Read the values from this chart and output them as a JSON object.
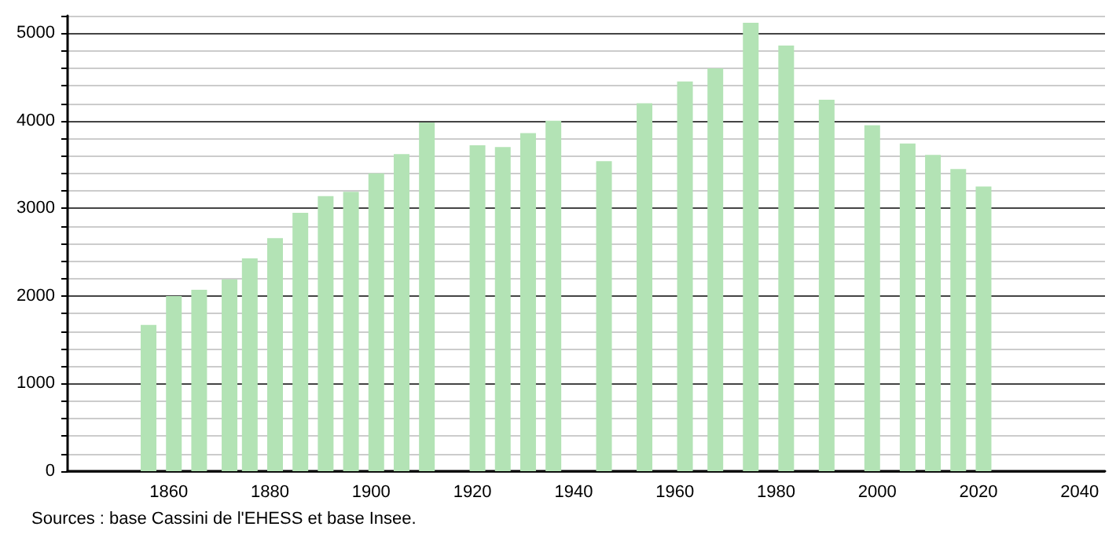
{
  "chart_data": {
    "type": "bar",
    "x": [
      1856,
      1861,
      1866,
      1872,
      1876,
      1881,
      1886,
      1891,
      1896,
      1901,
      1906,
      1911,
      1921,
      1926,
      1931,
      1936,
      1946,
      1954,
      1962,
      1968,
      1975,
      1982,
      1990,
      1999,
      2006,
      2011,
      2016,
      2021
    ],
    "values": [
      1670,
      2000,
      2070,
      2190,
      2430,
      2660,
      2950,
      3140,
      3190,
      3400,
      3620,
      3980,
      3720,
      3700,
      3860,
      4000,
      3540,
      4200,
      4450,
      4600,
      5120,
      4860,
      4240,
      3950,
      3740,
      3610,
      3450,
      3250
    ],
    "color": "#b3e3b5",
    "xlim": [
      1840,
      2045
    ],
    "xticks": [
      1860,
      1880,
      1900,
      1920,
      1940,
      1960,
      1980,
      2000,
      2020,
      2040
    ],
    "ylim": [
      0,
      5200
    ],
    "yticks": [
      0,
      1000,
      2000,
      3000,
      4000,
      5000
    ],
    "grid": "y",
    "annotations": [
      "Sources : base Cassini de l'EHESS et base Insee."
    ]
  }
}
